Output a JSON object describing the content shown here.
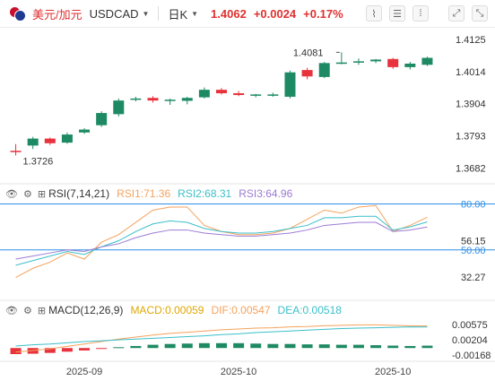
{
  "header": {
    "pair_name": "美元/加元",
    "symbol": "USDCAD",
    "period": "日K",
    "price": "1.4062",
    "change": "+0.0024",
    "change_pct": "+0.17%"
  },
  "colors": {
    "up": "#1e8a63",
    "down": "#e8323c",
    "rsi1": "#f5a25d",
    "rsi2": "#3bbfc9",
    "rsi3": "#9b7bd4",
    "macd": "#e0a800",
    "dif": "#f5a25d",
    "dea": "#3bbfc9",
    "level": "#2f8fe8"
  },
  "icons": {
    "eye": "eye-icon",
    "settings": "gear-icon",
    "candles": "candles-icon"
  },
  "chart_data": [
    {
      "type": "candlestick",
      "panel": "main",
      "ylim": [
        1.365,
        1.415
      ],
      "yticks": [
        "1.4125",
        "1.4014",
        "1.3904",
        "1.3793",
        "1.3682"
      ],
      "x_labels": [
        "2025-09",
        "2025-10",
        "2025-10"
      ],
      "annotations": [
        {
          "label": "1.4081",
          "type": "high"
        },
        {
          "label": "1.3726",
          "type": "low"
        }
      ],
      "candles": [
        [
          1.3742,
          1.3765,
          1.3726,
          1.374
        ],
        [
          1.376,
          1.379,
          1.3748,
          1.3784
        ],
        [
          1.3784,
          1.3788,
          1.3762,
          1.3768
        ],
        [
          1.377,
          1.3805,
          1.3766,
          1.3798
        ],
        [
          1.3805,
          1.382,
          1.38,
          1.3815
        ],
        [
          1.383,
          1.3878,
          1.3824,
          1.3872
        ],
        [
          1.3868,
          1.3922,
          1.386,
          1.3915
        ],
        [
          1.392,
          1.3928,
          1.3912,
          1.3922
        ],
        [
          1.3924,
          1.393,
          1.3908,
          1.3915
        ],
        [
          1.3918,
          1.3922,
          1.39,
          1.3918
        ],
        [
          1.3914,
          1.3928,
          1.3902,
          1.3924
        ],
        [
          1.3926,
          1.396,
          1.3922,
          1.3952
        ],
        [
          1.3952,
          1.3958,
          1.3936,
          1.394
        ],
        [
          1.394,
          1.3948,
          1.393,
          1.3934
        ],
        [
          1.3932,
          1.3938,
          1.3926,
          1.3936
        ],
        [
          1.3934,
          1.3942,
          1.3928,
          1.3936
        ],
        [
          1.3928,
          1.4018,
          1.3922,
          1.4012
        ],
        [
          1.402,
          1.4028,
          1.3988,
          1.3998
        ],
        [
          1.3996,
          1.4048,
          1.3992,
          1.4044
        ],
        [
          1.4044,
          1.4081,
          1.404,
          1.4046
        ],
        [
          1.4048,
          1.406,
          1.4038,
          1.405
        ],
        [
          1.405,
          1.4058,
          1.4044,
          1.4056
        ],
        [
          1.4058,
          1.4062,
          1.4024,
          1.403
        ],
        [
          1.403,
          1.4048,
          1.4022,
          1.4042
        ],
        [
          1.4038,
          1.4066,
          1.4034,
          1.4062
        ]
      ]
    },
    {
      "type": "line",
      "panel": "rsi",
      "title": "RSI(7,14,21)",
      "ylim": [
        20,
        85
      ],
      "yticks": [
        "80.00",
        "56.15",
        "50.00",
        "32.27"
      ],
      "levels": [
        80,
        50
      ],
      "series": [
        {
          "name": "RSI1",
          "label": "RSI1:71.36",
          "values": [
            32,
            38,
            42,
            48,
            44,
            55,
            60,
            68,
            76,
            78,
            78,
            66,
            62,
            60,
            60,
            61,
            64,
            70,
            76,
            74,
            78,
            79,
            62,
            66,
            71.36
          ]
        },
        {
          "name": "RSI2",
          "label": "RSI2:68.31",
          "values": [
            40,
            43,
            46,
            49,
            47,
            52,
            56,
            62,
            67,
            69,
            68,
            64,
            62,
            61,
            61,
            62,
            64,
            66,
            71,
            71,
            72,
            72,
            63,
            65,
            68.31
          ]
        },
        {
          "name": "RSI3",
          "label": "RSI3:64.96",
          "values": [
            44,
            46,
            48,
            50,
            49,
            52,
            54,
            58,
            61,
            63,
            63,
            61,
            60,
            59,
            59,
            60,
            61,
            63,
            66,
            67,
            68,
            68,
            62,
            63,
            64.96
          ]
        }
      ]
    },
    {
      "type": "bar+line",
      "panel": "macd",
      "title": "MACD(12,26,9)",
      "ylim": [
        -0.0026,
        0.008
      ],
      "yticks": [
        "0.00575",
        "0.00204",
        "-0.00168"
      ],
      "series": [
        {
          "name": "MACD",
          "label": "MACD:0.00059",
          "type": "bar",
          "values": [
            -0.0015,
            -0.0014,
            -0.0012,
            -0.0009,
            -0.0006,
            -0.0002,
            0.0002,
            0.0005,
            0.0008,
            0.001,
            0.0011,
            0.0012,
            0.0012,
            0.0012,
            0.0011,
            0.001,
            0.001,
            0.0009,
            0.0009,
            0.0008,
            0.0008,
            0.0007,
            0.0006,
            0.0005,
            0.00059
          ]
        },
        {
          "name": "DIF",
          "label": "DIF:0.00547",
          "type": "line",
          "values": [
            -0.001,
            -0.0006,
            -0.0002,
            0.0004,
            0.001,
            0.0016,
            0.0022,
            0.0027,
            0.0032,
            0.0036,
            0.0039,
            0.0042,
            0.0045,
            0.0047,
            0.0049,
            0.005,
            0.0052,
            0.0053,
            0.0055,
            0.0056,
            0.0057,
            0.0057,
            0.0056,
            0.0055,
            0.00547
          ]
        },
        {
          "name": "DEA",
          "label": "DEA:0.00518",
          "type": "line",
          "values": [
            0.0005,
            0.0008,
            0.001,
            0.0013,
            0.0016,
            0.0018,
            0.002,
            0.0022,
            0.0024,
            0.0026,
            0.0028,
            0.003,
            0.0033,
            0.0035,
            0.0038,
            0.004,
            0.0042,
            0.0044,
            0.0046,
            0.0048,
            0.0049,
            0.005,
            0.0051,
            0.0052,
            0.00518
          ]
        }
      ]
    }
  ]
}
